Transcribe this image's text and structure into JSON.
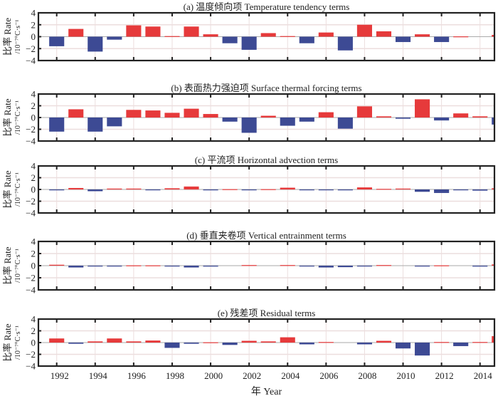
{
  "chart_data": [
    {
      "type": "bar",
      "title": "(a) 温度倾向项 Temperature tendency terms",
      "values": [
        -1.6,
        1.3,
        -2.5,
        -0.5,
        1.9,
        1.7,
        0.1,
        1.7,
        0.4,
        -1.1,
        -2.2,
        0.6,
        0.1,
        -1.1,
        0.7,
        -2.3,
        2.0,
        0.9,
        -0.9,
        0.4,
        -0.9,
        0.05,
        0.0,
        0.3
      ]
    },
    {
      "type": "bar",
      "title": "(b) 表面热力强迫项 Surface thermal forcing terms",
      "values": [
        -2.4,
        1.4,
        -2.4,
        -1.5,
        1.3,
        1.2,
        0.8,
        1.5,
        0.6,
        -0.7,
        -2.6,
        0.3,
        -1.4,
        -0.7,
        0.9,
        -1.9,
        1.9,
        0.2,
        -0.2,
        3.1,
        -0.5,
        0.7,
        0.2,
        -1.2
      ]
    },
    {
      "type": "bar",
      "title": "(c) 平流项 Horizontal advection terms",
      "values": [
        -0.15,
        0.25,
        -0.3,
        0.15,
        0.15,
        -0.05,
        0.2,
        0.5,
        -0.15,
        0.05,
        -0.1,
        0.05,
        0.3,
        -0.05,
        -0.05,
        -0.15,
        0.35,
        0.1,
        0.15,
        -0.4,
        -0.6,
        -0.1,
        -0.2,
        0.2
      ]
    },
    {
      "type": "bar",
      "title": "(d) 垂直夹卷项 Vertical entrainment terms",
      "values": [
        0.15,
        -0.3,
        -0.05,
        -0.05,
        0.05,
        0.05,
        -0.05,
        -0.3,
        -0.15,
        0.0,
        0.1,
        0.0,
        0.1,
        -0.05,
        -0.3,
        -0.25,
        -0.05,
        0.1,
        0.0,
        -0.05,
        0.05,
        0.0,
        -0.15,
        0.2
      ]
    },
    {
      "type": "bar",
      "title": "(e) 残差项 Residual terms",
      "values": [
        0.7,
        -0.2,
        0.2,
        0.7,
        0.2,
        0.35,
        -0.9,
        -0.2,
        0.05,
        -0.4,
        0.3,
        0.2,
        0.9,
        -0.3,
        0.1,
        0.0,
        -0.3,
        0.3,
        -1.0,
        -2.2,
        0.1,
        -0.6,
        0.1,
        1.1
      ]
    }
  ],
  "shared": {
    "x": [
      1992,
      1993,
      1994,
      1995,
      1996,
      1997,
      1998,
      1999,
      2000,
      2001,
      2002,
      2003,
      2004,
      2005,
      2006,
      2007,
      2008,
      2009,
      2010,
      2011,
      2012,
      2013,
      2014,
      2015
    ],
    "xlim": [
      1991.05,
      2014.75
    ],
    "ylim": [
      -4,
      4
    ],
    "yticks": [
      "4",
      "2",
      "0",
      "-2",
      "-4"
    ],
    "xticks": [
      "1992",
      "1994",
      "1996",
      "1998",
      "2000",
      "2002",
      "2004",
      "2006",
      "2008",
      "2010",
      "2012",
      "2014"
    ],
    "xlabel": "年 Year",
    "ylabel_line1": "比率 Rate",
    "ylabel_line2": "/10⁻⁷°C·s⁻¹",
    "positive_color": "#e63a3b",
    "negative_color": "#3d4a94",
    "grid": true
  }
}
